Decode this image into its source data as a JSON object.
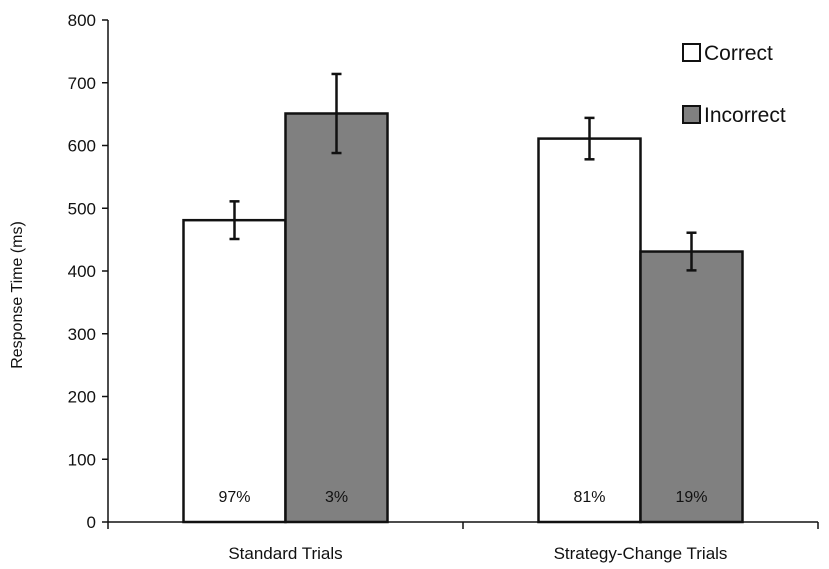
{
  "chart_data": {
    "type": "bar",
    "title": "",
    "xlabel": "",
    "ylabel": "Response Time (ms)",
    "ylim": [
      0,
      800
    ],
    "yticks": [
      0,
      100,
      200,
      300,
      400,
      500,
      600,
      700,
      800
    ],
    "grid": false,
    "legend_position": "top-right",
    "categories": [
      "Standard Trials",
      "Strategy-Change Trials"
    ],
    "series": [
      {
        "name": "Correct",
        "color": "#ffffff",
        "values": [
          481,
          611
        ],
        "errors": [
          30,
          33
        ],
        "percent_labels": [
          "97%",
          "81%"
        ]
      },
      {
        "name": "Incorrect",
        "color": "#808080",
        "values": [
          651,
          431
        ],
        "errors": [
          63,
          30
        ],
        "percent_labels": [
          "3%",
          "19%"
        ]
      }
    ]
  }
}
